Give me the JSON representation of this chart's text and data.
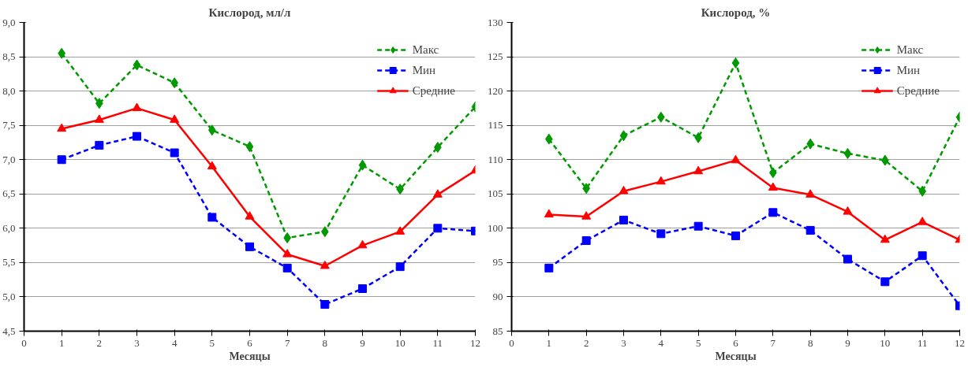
{
  "chart_data": [
    {
      "type": "line",
      "title": "Кислород, мл/л",
      "xlabel": "Месяцы",
      "x": [
        1,
        2,
        3,
        4,
        5,
        6,
        7,
        8,
        9,
        10,
        11,
        12
      ],
      "xlim": [
        0,
        12
      ],
      "xticks": [
        0,
        1,
        2,
        3,
        4,
        5,
        6,
        7,
        8,
        9,
        10,
        11,
        12
      ],
      "ylim": [
        4.5,
        9.0
      ],
      "yticks": [
        {
          "value": 4.5,
          "label": "4,5"
        },
        {
          "value": 5.0,
          "label": "5,0"
        },
        {
          "value": 5.5,
          "label": "5,5"
        },
        {
          "value": 6.0,
          "label": "6,0"
        },
        {
          "value": 6.5,
          "label": "6,5"
        },
        {
          "value": 7.0,
          "label": "7,0"
        },
        {
          "value": 7.5,
          "label": "7,5"
        },
        {
          "value": 8.0,
          "label": "8,0"
        },
        {
          "value": 8.5,
          "label": "8,5"
        },
        {
          "value": 9.0,
          "label": "9,0"
        }
      ],
      "grid": "y",
      "legend": "top right",
      "series": [
        {
          "name": "Макс",
          "color": "#009900",
          "marker": "diamond",
          "line_style": "dashed",
          "values": [
            8.55,
            7.82,
            8.38,
            8.12,
            7.43,
            7.19,
            5.86,
            5.95,
            6.92,
            6.57,
            7.18,
            7.77
          ]
        },
        {
          "name": "Мин",
          "color": "#0000ff",
          "marker": "square",
          "line_style": "dashed",
          "values": [
            7.0,
            7.21,
            7.34,
            7.1,
            6.16,
            5.73,
            5.42,
            4.89,
            5.12,
            5.44,
            6.0,
            5.96
          ]
        },
        {
          "name": "Средние",
          "color": "#ff0000",
          "marker": "triangle",
          "line_style": "solid",
          "values": [
            7.45,
            7.58,
            7.75,
            7.58,
            6.9,
            6.17,
            5.62,
            5.45,
            5.75,
            5.95,
            6.49,
            6.84
          ]
        }
      ]
    },
    {
      "type": "line",
      "title": "Кислород, %",
      "xlabel": "Месяцы",
      "x": [
        1,
        2,
        3,
        4,
        5,
        6,
        7,
        8,
        9,
        10,
        11,
        12
      ],
      "xlim": [
        0,
        12
      ],
      "xticks": [
        0,
        1,
        2,
        3,
        4,
        5,
        6,
        7,
        8,
        9,
        10,
        11,
        12
      ],
      "ylim": [
        85,
        130
      ],
      "yticks": [
        85,
        90,
        95,
        100,
        105,
        110,
        115,
        120,
        125,
        130
      ],
      "grid": "y",
      "legend": "top right",
      "series": [
        {
          "name": "Макс",
          "color": "#009900",
          "marker": "diamond",
          "line_style": "dashed",
          "values": [
            113.0,
            105.8,
            113.5,
            116.2,
            113.2,
            124.1,
            108.1,
            112.3,
            110.9,
            109.9,
            105.4,
            116.2
          ]
        },
        {
          "name": "Мин",
          "color": "#0000ff",
          "marker": "square",
          "line_style": "dashed",
          "values": [
            94.2,
            98.2,
            101.2,
            99.2,
            100.3,
            98.9,
            102.3,
            99.7,
            95.5,
            92.2,
            96.0,
            88.7
          ]
        },
        {
          "name": "Средние",
          "color": "#ff0000",
          "marker": "triangle",
          "line_style": "solid",
          "values": [
            102.0,
            101.7,
            105.4,
            106.8,
            108.3,
            109.9,
            105.9,
            104.9,
            102.4,
            98.3,
            100.9,
            98.3
          ]
        }
      ]
    }
  ]
}
